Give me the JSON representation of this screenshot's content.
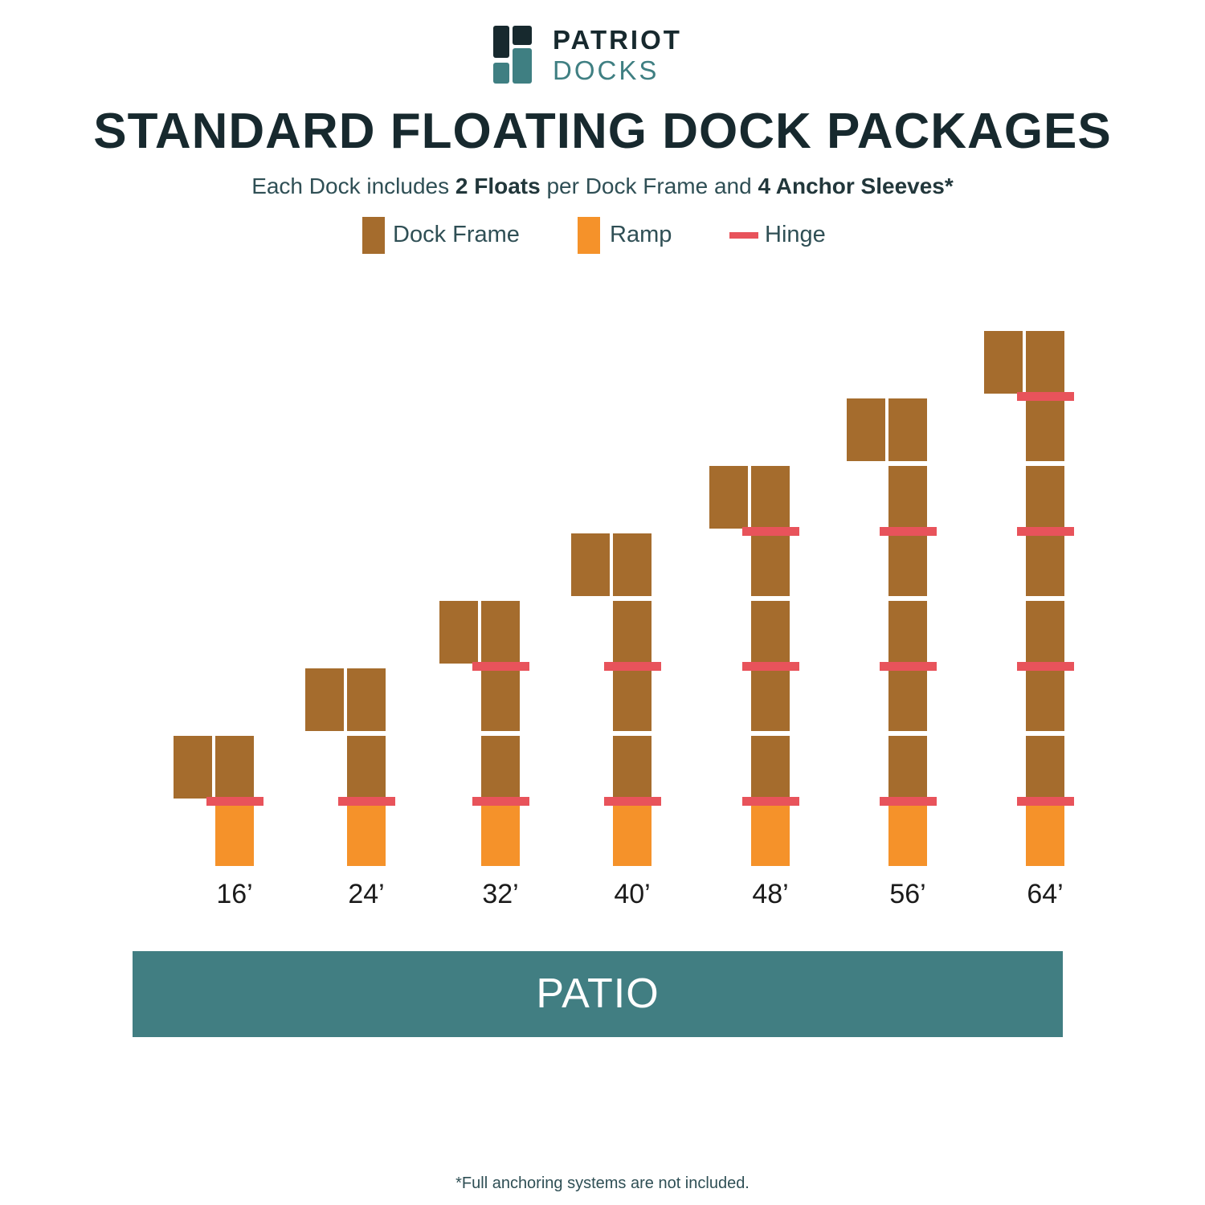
{
  "brand": {
    "line1": "PATRIOT",
    "line2": "DOCKS"
  },
  "title": "STANDARD FLOATING DOCK PACKAGES",
  "subtitle": {
    "prefix": "Each Dock includes ",
    "floats": "2 Floats",
    "middle": " per Dock Frame and ",
    "sleeves": "4 Anchor Sleeves",
    "suffix": "*"
  },
  "legend": {
    "frame": "Dock Frame",
    "ramp": "Ramp",
    "hinge": "Hinge"
  },
  "colors": {
    "frame": "#a56c2d",
    "ramp": "#f5922a",
    "hinge": "#e8535b",
    "patio": "#417e82",
    "dark": "#17292e",
    "teal": "#3f7f82"
  },
  "packages": [
    {
      "label": "16’",
      "frames": 2
    },
    {
      "label": "24’",
      "frames": 3
    },
    {
      "label": "32’",
      "frames": 4
    },
    {
      "label": "40’",
      "frames": 5
    },
    {
      "label": "48’",
      "frames": 6
    },
    {
      "label": "56’",
      "frames": 7
    },
    {
      "label": "64’",
      "frames": 8
    }
  ],
  "patio": "PATIO",
  "footnote": "*Full anchoring systems are not included."
}
